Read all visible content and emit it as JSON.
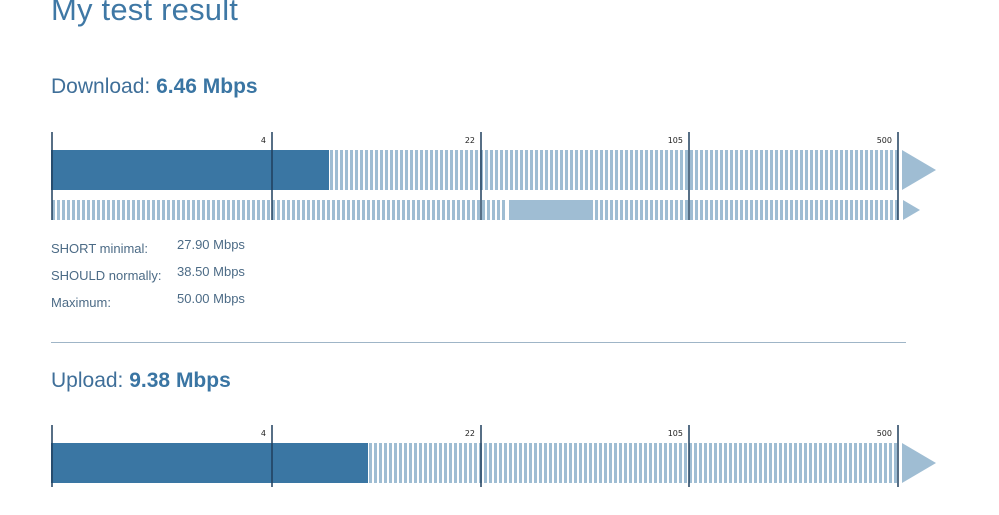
{
  "page": {
    "title": "My test result"
  },
  "colors": {
    "dark_blue": "#3a76a3",
    "light_blue": "#9fbdd3",
    "tick_line": "#1f3f5d",
    "text": "#3f6f99"
  },
  "scale": {
    "ticks": [
      "4",
      "22",
      "105",
      "500"
    ],
    "unit": "Mbps"
  },
  "download": {
    "label": "Download:",
    "value": "6.46 Mbps",
    "measured_mbps": 6.46,
    "fill_fraction": 0.328,
    "reference_band_fraction": [
      0.538,
      0.635
    ],
    "stats": [
      {
        "label": "SHORT minimal:",
        "value": "27.90 Mbps"
      },
      {
        "label": "SHOULD normally:",
        "value": "38.50 Mbps"
      },
      {
        "label": "Maximum:",
        "value": "50.00 Mbps"
      }
    ]
  },
  "upload": {
    "label": "Upload:",
    "value": "9.38 Mbps",
    "measured_mbps": 9.38,
    "fill_fraction": 0.374
  }
}
